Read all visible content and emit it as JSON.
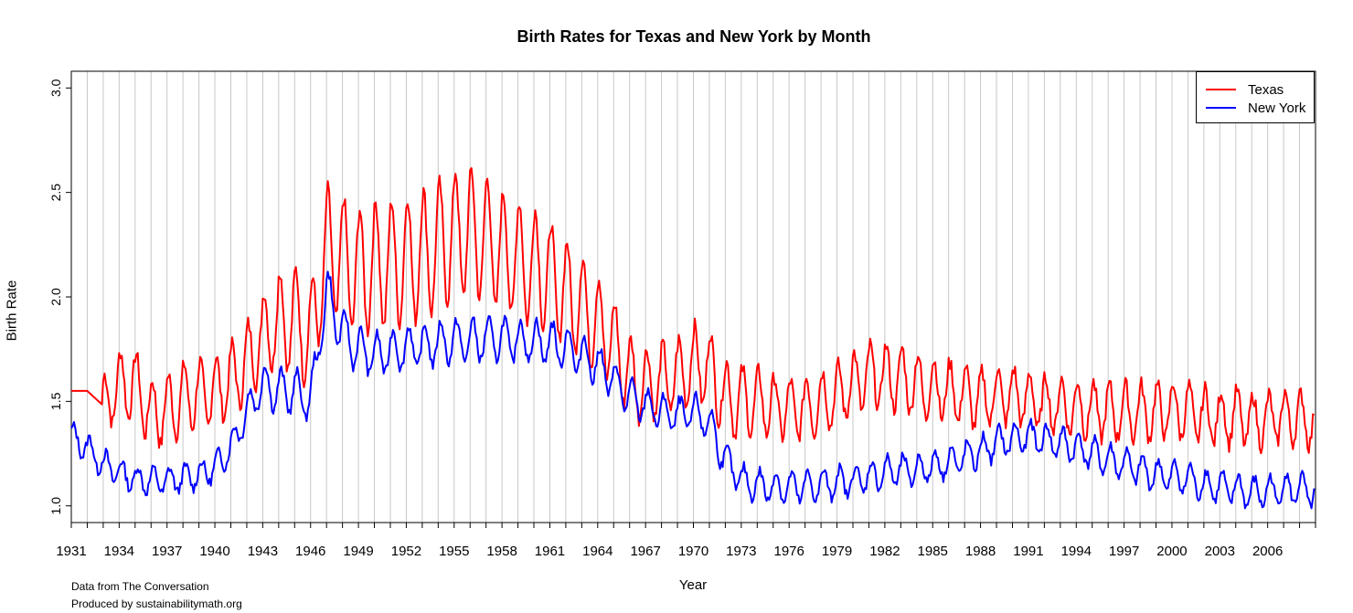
{
  "chart_data": {
    "type": "line",
    "title": "Birth Rates for Texas and New York by Month",
    "xlabel": "Year",
    "ylabel": "Birth Rate",
    "xlim": [
      1931,
      2009
    ],
    "ylim": [
      0.92,
      3.08
    ],
    "yticks": [
      1.0,
      1.5,
      2.0,
      2.5,
      3.0
    ],
    "ytick_labels": [
      "1.0",
      "1.5",
      "2.0",
      "2.5",
      "3.0"
    ],
    "xtick_labels": [
      "1931",
      "1934",
      "1937",
      "1940",
      "1943",
      "1946",
      "1949",
      "1952",
      "1955",
      "1958",
      "1961",
      "1964",
      "1967",
      "1970",
      "1973",
      "1976",
      "1979",
      "1982",
      "1985",
      "1988",
      "1991",
      "1994",
      "1997",
      "2000",
      "2003",
      "2006"
    ],
    "grid": "vertical yearly",
    "legend_position": "top-right",
    "series": [
      {
        "name": "Texas",
        "color": "#ff0000",
        "x": [
          1931,
          1932,
          1933,
          1934,
          1935,
          1936,
          1937,
          1938,
          1939,
          1940,
          1941,
          1942,
          1943,
          1944,
          1945,
          1946,
          1947,
          1948,
          1949,
          1950,
          1951,
          1952,
          1953,
          1954,
          1955,
          1956,
          1957,
          1958,
          1959,
          1960,
          1961,
          1962,
          1963,
          1964,
          1965,
          1966,
          1967,
          1968,
          1969,
          1970,
          1971,
          1972,
          1973,
          1974,
          1975,
          1976,
          1977,
          1978,
          1979,
          1980,
          1981,
          1982,
          1983,
          1984,
          1985,
          1986,
          1987,
          1988,
          1989,
          1990,
          1991,
          1992,
          1993,
          1994,
          1995,
          1996,
          1997,
          1998,
          1999,
          2000,
          2001,
          2002,
          2003,
          2004,
          2005,
          2006,
          2007,
          2008,
          2009
        ],
        "values": [
          1.55,
          1.55,
          1.48,
          1.58,
          1.58,
          1.44,
          1.46,
          1.52,
          1.53,
          1.55,
          1.6,
          1.68,
          1.82,
          1.88,
          1.9,
          1.8,
          2.22,
          2.18,
          2.12,
          2.15,
          2.16,
          2.18,
          2.2,
          2.24,
          2.3,
          2.31,
          2.28,
          2.22,
          2.18,
          2.15,
          2.1,
          2.02,
          1.96,
          1.88,
          1.78,
          1.62,
          1.58,
          1.6,
          1.62,
          1.68,
          1.66,
          1.52,
          1.5,
          1.5,
          1.48,
          1.46,
          1.47,
          1.5,
          1.53,
          1.58,
          1.62,
          1.62,
          1.61,
          1.58,
          1.56,
          1.55,
          1.53,
          1.51,
          1.53,
          1.53,
          1.51,
          1.49,
          1.48,
          1.47,
          1.46,
          1.45,
          1.45,
          1.45,
          1.45,
          1.46,
          1.45,
          1.43,
          1.42,
          1.43,
          1.41,
          1.41,
          1.43,
          1.42,
          1.4
        ],
        "seasonal_amplitude": [
          0,
          0,
          0.14,
          0.16,
          0.16,
          0.16,
          0.16,
          0.16,
          0.16,
          0.16,
          0.17,
          0.18,
          0.2,
          0.24,
          0.24,
          0.25,
          0.3,
          0.3,
          0.3,
          0.3,
          0.3,
          0.3,
          0.3,
          0.3,
          0.3,
          0.3,
          0.3,
          0.28,
          0.28,
          0.27,
          0.26,
          0.25,
          0.24,
          0.22,
          0.2,
          0.18,
          0.17,
          0.17,
          0.17,
          0.18,
          0.18,
          0.17,
          0.16,
          0.15,
          0.14,
          0.14,
          0.14,
          0.14,
          0.14,
          0.15,
          0.15,
          0.15,
          0.15,
          0.15,
          0.14,
          0.14,
          0.14,
          0.13,
          0.13,
          0.13,
          0.13,
          0.13,
          0.13,
          0.13,
          0.13,
          0.13,
          0.13,
          0.13,
          0.13,
          0.13,
          0.13,
          0.13,
          0.13,
          0.13,
          0.12,
          0.12,
          0.12,
          0.12,
          0.12
        ]
      },
      {
        "name": "New York",
        "color": "#0000ff",
        "x": [
          1931,
          1932,
          1933,
          1934,
          1935,
          1936,
          1937,
          1938,
          1939,
          1940,
          1941,
          1942,
          1943,
          1944,
          1945,
          1946,
          1947,
          1948,
          1949,
          1950,
          1951,
          1952,
          1953,
          1954,
          1955,
          1956,
          1957,
          1958,
          1959,
          1960,
          1961,
          1962,
          1963,
          1964,
          1965,
          1966,
          1967,
          1968,
          1969,
          1970,
          1971,
          1972,
          1973,
          1974,
          1975,
          1976,
          1977,
          1978,
          1979,
          1980,
          1981,
          1982,
          1983,
          1984,
          1985,
          1986,
          1987,
          1988,
          1989,
          1990,
          1991,
          1992,
          1993,
          1994,
          1995,
          1996,
          1997,
          1998,
          1999,
          2000,
          2001,
          2002,
          2003,
          2004,
          2005,
          2006,
          2007,
          2008,
          2009
        ],
        "values": [
          1.33,
          1.28,
          1.2,
          1.16,
          1.13,
          1.12,
          1.12,
          1.13,
          1.15,
          1.18,
          1.28,
          1.45,
          1.58,
          1.55,
          1.55,
          1.5,
          2.02,
          1.83,
          1.75,
          1.72,
          1.74,
          1.76,
          1.76,
          1.78,
          1.79,
          1.79,
          1.8,
          1.8,
          1.79,
          1.79,
          1.78,
          1.76,
          1.72,
          1.68,
          1.6,
          1.52,
          1.48,
          1.45,
          1.43,
          1.45,
          1.4,
          1.22,
          1.12,
          1.1,
          1.09,
          1.09,
          1.09,
          1.1,
          1.11,
          1.12,
          1.14,
          1.16,
          1.17,
          1.17,
          1.19,
          1.21,
          1.23,
          1.26,
          1.3,
          1.32,
          1.33,
          1.32,
          1.3,
          1.28,
          1.25,
          1.22,
          1.2,
          1.17,
          1.15,
          1.14,
          1.13,
          1.1,
          1.09,
          1.08,
          1.06,
          1.07,
          1.08,
          1.08,
          1.06
        ],
        "seasonal_amplitude": [
          0.06,
          0.06,
          0.06,
          0.06,
          0.06,
          0.06,
          0.06,
          0.06,
          0.06,
          0.06,
          0.07,
          0.08,
          0.1,
          0.1,
          0.1,
          0.1,
          0.12,
          0.11,
          0.1,
          0.1,
          0.1,
          0.1,
          0.1,
          0.1,
          0.1,
          0.1,
          0.1,
          0.1,
          0.1,
          0.1,
          0.1,
          0.1,
          0.1,
          0.09,
          0.09,
          0.08,
          0.08,
          0.08,
          0.08,
          0.08,
          0.08,
          0.07,
          0.07,
          0.07,
          0.07,
          0.07,
          0.07,
          0.07,
          0.07,
          0.07,
          0.07,
          0.07,
          0.07,
          0.07,
          0.07,
          0.07,
          0.07,
          0.07,
          0.07,
          0.07,
          0.07,
          0.07,
          0.07,
          0.07,
          0.07,
          0.07,
          0.07,
          0.07,
          0.07,
          0.07,
          0.07,
          0.07,
          0.07,
          0.07,
          0.07,
          0.07,
          0.07,
          0.07,
          0.07
        ]
      }
    ],
    "annotations": [
      "Data from The Conversation",
      "Produced by sustainabilitymath.org"
    ]
  },
  "legend": {
    "texas_label": "Texas",
    "newyork_label": "New York"
  },
  "footer": {
    "line1": "Data from The Conversation",
    "line2": "Produced by sustainabilitymath.org"
  },
  "colors": {
    "texas": "#ff0000",
    "newyork": "#0000ff",
    "grid": "#c8c8c8"
  }
}
